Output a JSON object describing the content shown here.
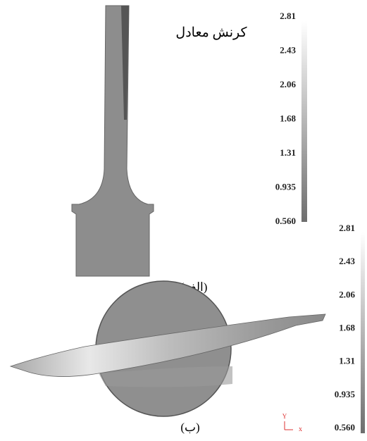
{
  "figure_a": {
    "title": "کرنش معادل",
    "caption": "(الف)",
    "colorbar_ticks": [
      "2.81",
      "2.43",
      "2.06",
      "1.68",
      "1.31",
      "0.935",
      "0.560"
    ]
  },
  "figure_b": {
    "caption": "(ب)",
    "colorbar_ticks": [
      "2.81",
      "2.43",
      "2.06",
      "1.68",
      "1.31",
      "0.935",
      "0.560"
    ],
    "axis_y": "Y",
    "axis_x": "x"
  }
}
